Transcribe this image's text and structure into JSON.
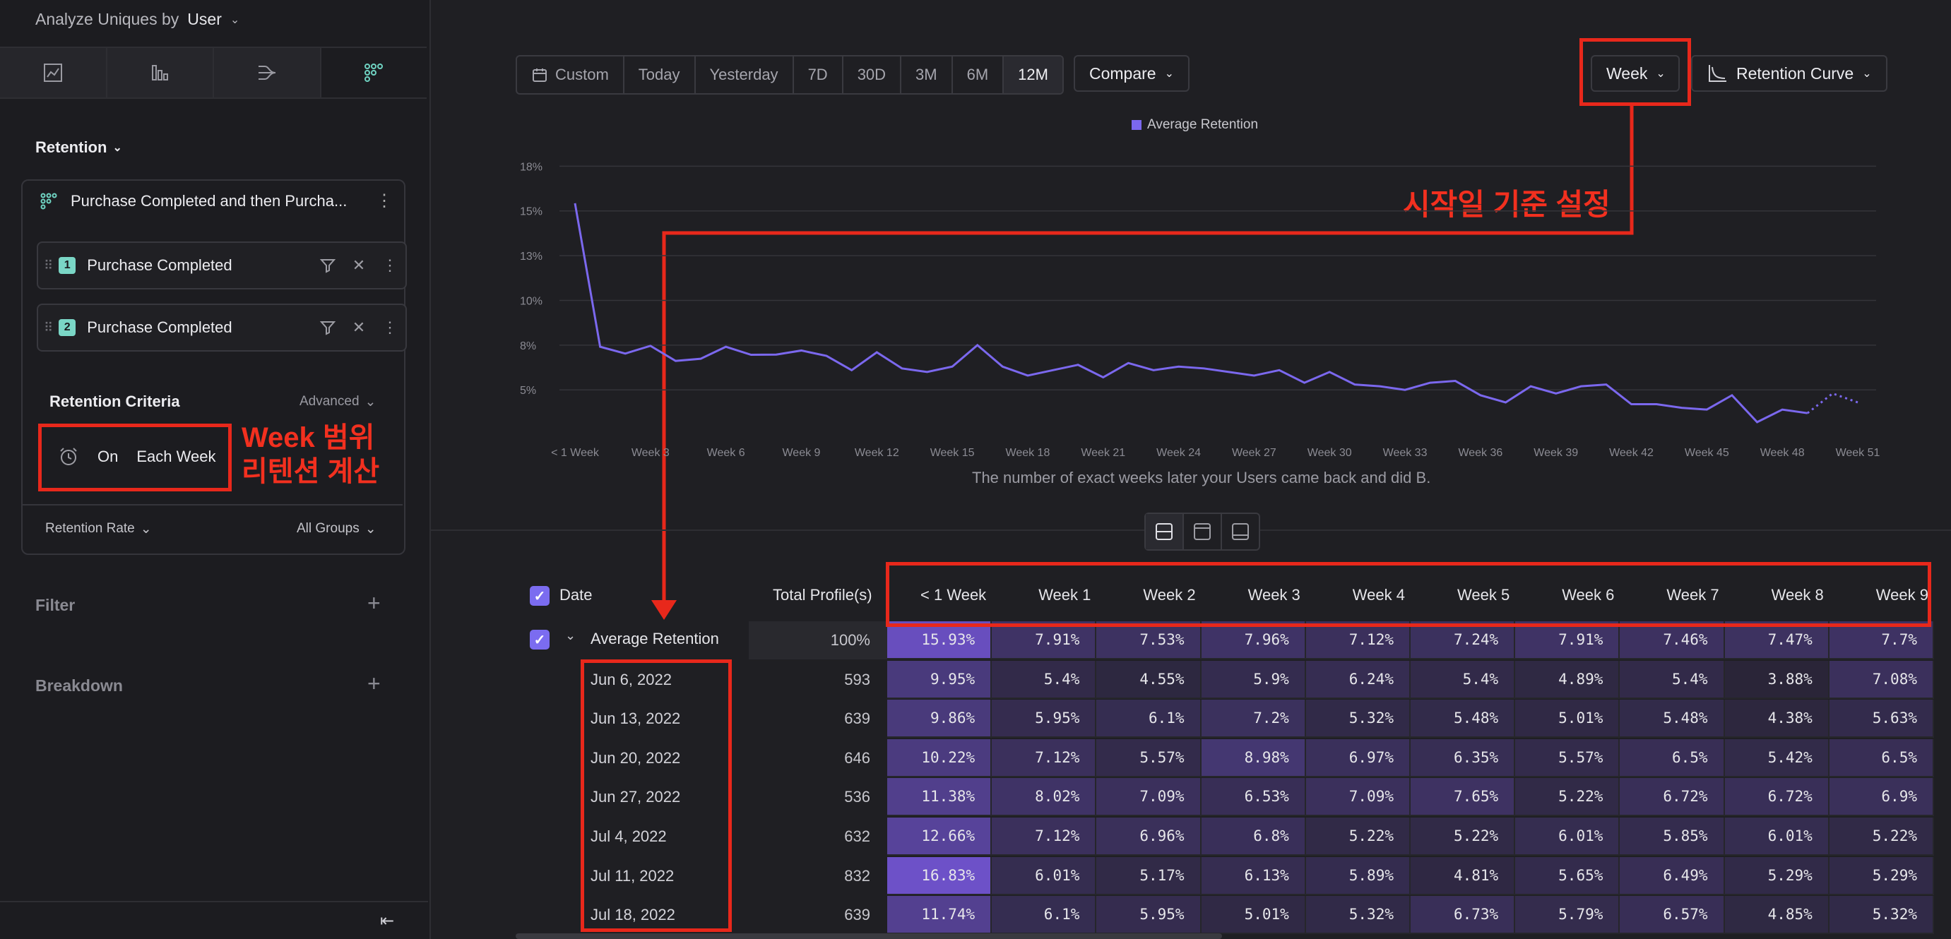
{
  "sidebar": {
    "analyze_prefix": "Analyze Uniques by",
    "analyze_value": "User",
    "retention_title": "Retention",
    "funnel_name": "Purchase Completed and then Purcha...",
    "metrics": [
      {
        "num": "1",
        "label": "Purchase Completed"
      },
      {
        "num": "2",
        "label": "Purchase Completed"
      }
    ],
    "criteria_title": "Retention Criteria",
    "criteria_advanced": "Advanced",
    "criteria_on": "On",
    "criteria_each": "Each Week",
    "annotation_week_line1": "Week 범위",
    "annotation_week_line2": "리텐션 계산",
    "retention_rate": "Retention Rate",
    "all_groups": "All Groups",
    "filter": "Filter",
    "breakdown": "Breakdown"
  },
  "toolbar": {
    "date_ranges": [
      "Custom",
      "Today",
      "Yesterday",
      "7D",
      "30D",
      "3M",
      "6M",
      "12M"
    ],
    "active_range": "12M",
    "compare": "Compare",
    "granularity": "Week",
    "chart_type": "Retention Curve"
  },
  "annotation_start": "시작일 기준 설정",
  "colors": {
    "accent": "#7b6cf0",
    "annotation": "#e8281b",
    "line": "#7b68ee"
  },
  "chart_data": {
    "type": "line",
    "legend": [
      "Average Retention"
    ],
    "caption": "The number of exact weeks later your Users came back and did B.",
    "y_ticks": [
      "18%",
      "15%",
      "13%",
      "10%",
      "8%",
      "5%"
    ],
    "x_ticks": [
      "< 1 Week",
      "Week 3",
      "Week 6",
      "Week 9",
      "Week 12",
      "Week 15",
      "Week 18",
      "Week 21",
      "Week 24",
      "Week 27",
      "Week 30",
      "Week 33",
      "Week 36",
      "Week 39",
      "Week 42",
      "Week 45",
      "Week 48",
      "Week 51"
    ],
    "ylim": [
      3.3,
      19
    ],
    "series": [
      {
        "name": "Average Retention",
        "values": [
          15.93,
          7.91,
          7.53,
          7.96,
          7.12,
          7.24,
          7.91,
          7.46,
          7.47,
          7.7,
          7.4,
          6.6,
          7.6,
          6.7,
          6.5,
          6.8,
          8.0,
          6.8,
          6.3,
          6.6,
          6.9,
          6.2,
          7.0,
          6.6,
          6.8,
          6.7,
          6.5,
          6.3,
          6.6,
          5.9,
          6.5,
          5.8,
          5.7,
          5.5,
          5.9,
          6.0,
          5.2,
          4.8,
          5.7,
          5.3,
          5.7,
          5.8,
          4.7,
          4.7,
          4.5,
          4.4,
          5.2,
          3.7,
          4.4,
          4.2,
          5.3,
          4.8
        ],
        "dotted_from_index": 49
      }
    ]
  },
  "table": {
    "date_header": "Date",
    "total_header": "Total Profile(s)",
    "columns": [
      "< 1 Week",
      "Week 1",
      "Week 2",
      "Week 3",
      "Week 4",
      "Week 5",
      "Week 6",
      "Week 7",
      "Week 8",
      "Week 9"
    ],
    "average": {
      "label": "Average Retention",
      "total": "100%",
      "values": [
        "15.93%",
        "7.91%",
        "7.53%",
        "7.96%",
        "7.12%",
        "7.24%",
        "7.91%",
        "7.46%",
        "7.47%",
        "7.7%"
      ]
    },
    "rows": [
      {
        "date": "Jun 6, 2022",
        "total": "593",
        "values": [
          "9.95%",
          "5.4%",
          "4.55%",
          "5.9%",
          "6.24%",
          "5.4%",
          "4.89%",
          "5.4%",
          "3.88%",
          "7.08%"
        ]
      },
      {
        "date": "Jun 13, 2022",
        "total": "639",
        "values": [
          "9.86%",
          "5.95%",
          "6.1%",
          "7.2%",
          "5.32%",
          "5.48%",
          "5.01%",
          "5.48%",
          "4.38%",
          "5.63%"
        ]
      },
      {
        "date": "Jun 20, 2022",
        "total": "646",
        "values": [
          "10.22%",
          "7.12%",
          "5.57%",
          "8.98%",
          "6.97%",
          "6.35%",
          "5.57%",
          "6.5%",
          "5.42%",
          "6.5%"
        ]
      },
      {
        "date": "Jun 27, 2022",
        "total": "536",
        "values": [
          "11.38%",
          "8.02%",
          "7.09%",
          "6.53%",
          "7.09%",
          "7.65%",
          "5.22%",
          "6.72%",
          "6.72%",
          "6.9%"
        ]
      },
      {
        "date": "Jul 4, 2022",
        "total": "632",
        "values": [
          "12.66%",
          "7.12%",
          "6.96%",
          "6.8%",
          "5.22%",
          "5.22%",
          "6.01%",
          "5.85%",
          "6.01%",
          "5.22%"
        ]
      },
      {
        "date": "Jul 11, 2022",
        "total": "832",
        "values": [
          "16.83%",
          "6.01%",
          "5.17%",
          "6.13%",
          "5.89%",
          "4.81%",
          "5.65%",
          "6.49%",
          "5.29%",
          "5.29%"
        ]
      },
      {
        "date": "Jul 18, 2022",
        "total": "639",
        "values": [
          "11.74%",
          "6.1%",
          "5.95%",
          "5.01%",
          "5.32%",
          "6.73%",
          "5.79%",
          "6.57%",
          "4.85%",
          "5.32%"
        ]
      }
    ]
  }
}
